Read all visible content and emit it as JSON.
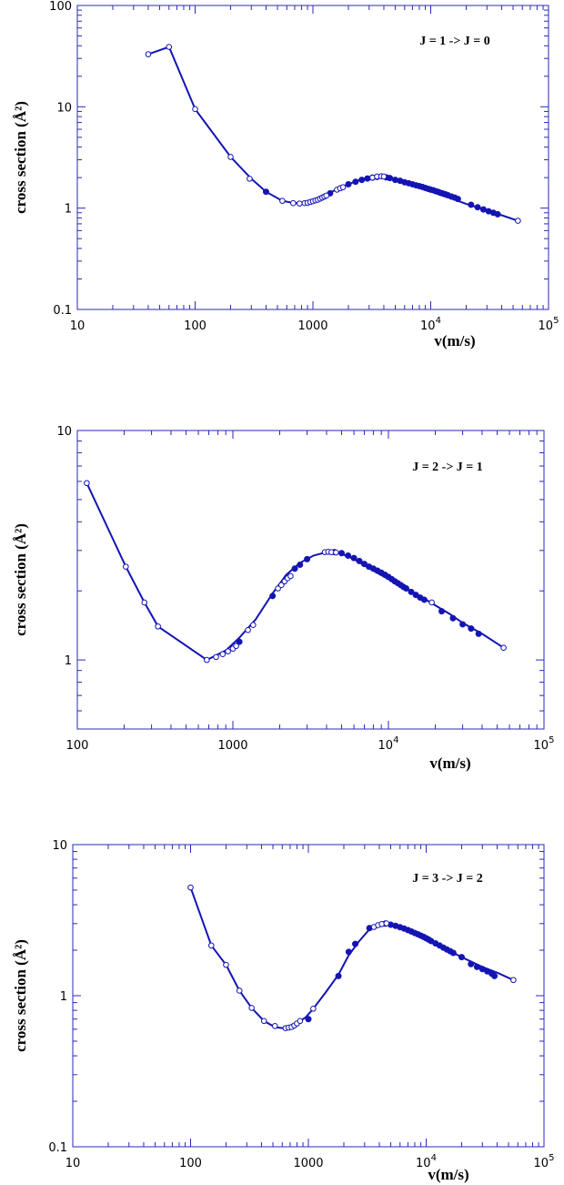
{
  "chart_data": [
    {
      "type": "line",
      "annotation": "J = 1 -> J = 0",
      "xlabel_base": "v(m/s)",
      "ylabel": "cross  section  (Å²)",
      "xscale": "log",
      "yscale": "log",
      "xlim": [
        10,
        100000
      ],
      "ylim": [
        0.1,
        100
      ],
      "x_ticks": [
        {
          "value": 10,
          "base": "10",
          "exp": ""
        },
        {
          "value": 100,
          "base": "100",
          "exp": ""
        },
        {
          "value": 1000,
          "base": "1000",
          "exp": ""
        },
        {
          "value": 10000,
          "base": "10",
          "exp": "4"
        },
        {
          "value": 100000,
          "base": "10",
          "exp": "5"
        }
      ],
      "y_ticks": [
        {
          "value": 0.1,
          "label": "0.1"
        },
        {
          "value": 1,
          "label": "1"
        },
        {
          "value": 10,
          "label": "10"
        },
        {
          "value": 100,
          "label": "100"
        }
      ],
      "line": {
        "x": [
          40,
          60,
          100,
          200,
          300,
          400,
          550,
          700,
          900,
          1200,
          1500,
          2000,
          2500,
          3000,
          3500,
          4000,
          5000,
          7000,
          10000,
          15000,
          20000,
          30000,
          40000,
          55000
        ],
        "y": [
          33,
          39,
          9.5,
          3.2,
          1.95,
          1.45,
          1.18,
          1.12,
          1.14,
          1.27,
          1.48,
          1.72,
          1.9,
          2.0,
          2.05,
          2.02,
          1.88,
          1.68,
          1.48,
          1.25,
          1.1,
          0.95,
          0.85,
          0.75
        ]
      },
      "markers_open": {
        "x": [
          40,
          60,
          100,
          200,
          290,
          550,
          680,
          770,
          850,
          900,
          950,
          1000,
          1050,
          1100,
          1150,
          1200,
          1250,
          1300,
          1600,
          1700,
          1800,
          3200,
          3500,
          3800,
          4000,
          55000
        ],
        "y": [
          33,
          39,
          9.5,
          3.2,
          1.95,
          1.18,
          1.12,
          1.11,
          1.12,
          1.13,
          1.15,
          1.17,
          1.19,
          1.21,
          1.24,
          1.27,
          1.3,
          1.33,
          1.52,
          1.57,
          1.61,
          2.0,
          2.05,
          2.06,
          2.05,
          0.75
        ]
      },
      "markers_filled": {
        "x": [
          400,
          1400,
          2000,
          2300,
          2600,
          2900,
          3200,
          3500,
          4200,
          4500,
          5000,
          5500,
          6000,
          6500,
          7000,
          7500,
          8000,
          8500,
          9000,
          9500,
          10000,
          10500,
          11000,
          11500,
          12000,
          12500,
          13000,
          13500,
          14000,
          15000,
          16000,
          17000,
          22000,
          25000,
          28000,
          31000,
          34000,
          37000
        ],
        "y": [
          1.45,
          1.4,
          1.72,
          1.82,
          1.9,
          1.96,
          2.0,
          2.03,
          2.01,
          1.98,
          1.9,
          1.86,
          1.8,
          1.76,
          1.72,
          1.68,
          1.65,
          1.62,
          1.58,
          1.55,
          1.52,
          1.5,
          1.47,
          1.45,
          1.42,
          1.4,
          1.38,
          1.36,
          1.34,
          1.3,
          1.27,
          1.23,
          1.08,
          1.02,
          0.97,
          0.93,
          0.9,
          0.87
        ]
      }
    },
    {
      "type": "line",
      "annotation": "J = 2 -> J = 1",
      "xlabel_base": "v(m/s)",
      "ylabel": "cross  section  (Å²)",
      "xscale": "log",
      "yscale": "log",
      "xlim": [
        100,
        100000
      ],
      "ylim": [
        0.5,
        10
      ],
      "x_ticks": [
        {
          "value": 100,
          "base": "100",
          "exp": ""
        },
        {
          "value": 1000,
          "base": "1000",
          "exp": ""
        },
        {
          "value": 10000,
          "base": "10",
          "exp": "4"
        },
        {
          "value": 100000,
          "base": "10",
          "exp": "5"
        }
      ],
      "y_ticks": [
        {
          "value": 1,
          "label": "1"
        },
        {
          "value": 10,
          "label": "10"
        }
      ],
      "line": {
        "x": [
          115,
          205,
          270,
          330,
          680,
          900,
          1100,
          1400,
          1800,
          2200,
          2700,
          3300,
          4000,
          4500,
          5000,
          6000,
          8000,
          10000,
          13000,
          17000,
          20000,
          25000,
          30000,
          40000,
          55000
        ],
        "y": [
          5.9,
          2.55,
          1.78,
          1.4,
          1.0,
          1.1,
          1.25,
          1.5,
          1.95,
          2.35,
          2.65,
          2.85,
          2.95,
          2.94,
          2.9,
          2.75,
          2.45,
          2.25,
          2.05,
          1.85,
          1.73,
          1.58,
          1.45,
          1.3,
          1.13
        ]
      },
      "markers_open": {
        "x": [
          115,
          205,
          270,
          330,
          680,
          780,
          860,
          930,
          1000,
          1050,
          1250,
          1350,
          1950,
          2050,
          2150,
          2250,
          2350,
          3900,
          4100,
          4300,
          4600,
          19000,
          55000
        ],
        "y": [
          5.9,
          2.55,
          1.78,
          1.4,
          1.0,
          1.03,
          1.06,
          1.09,
          1.12,
          1.15,
          1.35,
          1.42,
          2.05,
          2.12,
          2.2,
          2.27,
          2.32,
          2.95,
          2.96,
          2.95,
          2.94,
          1.78,
          1.13
        ]
      },
      "markers_filled": {
        "x": [
          1100,
          1800,
          2500,
          2700,
          3000,
          4500,
          5000,
          5500,
          6000,
          6500,
          7000,
          7500,
          8000,
          8500,
          9000,
          9500,
          10000,
          10500,
          11000,
          11500,
          12000,
          12500,
          13000,
          14000,
          15000,
          16000,
          17000,
          22000,
          26000,
          30000,
          34000,
          38000
        ],
        "y": [
          1.2,
          1.9,
          2.5,
          2.6,
          2.75,
          2.95,
          2.92,
          2.85,
          2.78,
          2.7,
          2.62,
          2.55,
          2.5,
          2.45,
          2.4,
          2.35,
          2.3,
          2.25,
          2.2,
          2.16,
          2.12,
          2.08,
          2.05,
          1.98,
          1.92,
          1.87,
          1.83,
          1.63,
          1.52,
          1.43,
          1.37,
          1.3
        ]
      }
    },
    {
      "type": "line",
      "annotation": "J = 3 -> J = 2",
      "xlabel_base": "v(m/s)",
      "ylabel": "cross  section  (Å²)",
      "xscale": "log",
      "yscale": "log",
      "xlim": [
        10,
        100000
      ],
      "ylim": [
        0.1,
        10
      ],
      "x_ticks": [
        {
          "value": 10,
          "base": "10",
          "exp": ""
        },
        {
          "value": 100,
          "base": "100",
          "exp": ""
        },
        {
          "value": 1000,
          "base": "1000",
          "exp": ""
        },
        {
          "value": 10000,
          "base": "10",
          "exp": "4"
        },
        {
          "value": 100000,
          "base": "10",
          "exp": "5"
        }
      ],
      "y_ticks": [
        {
          "value": 0.1,
          "label": "0.1"
        },
        {
          "value": 1,
          "label": "1"
        },
        {
          "value": 10,
          "label": "10"
        }
      ],
      "line": {
        "x": [
          100,
          150,
          200,
          260,
          330,
          420,
          520,
          600,
          700,
          800,
          950,
          1100,
          1400,
          1800,
          2200,
          2700,
          3300,
          4000,
          4700,
          5500,
          7000,
          10000,
          15000,
          20000,
          30000,
          40000,
          55000
        ],
        "y": [
          5.2,
          2.15,
          1.6,
          1.08,
          0.83,
          0.68,
          0.62,
          0.61,
          0.62,
          0.66,
          0.72,
          0.82,
          1.05,
          1.38,
          1.85,
          2.3,
          2.75,
          3.0,
          3.02,
          2.95,
          2.7,
          2.35,
          2.02,
          1.8,
          1.55,
          1.42,
          1.27
        ]
      },
      "markers_open": {
        "x": [
          100,
          150,
          200,
          260,
          330,
          420,
          520,
          640,
          680,
          720,
          760,
          800,
          850,
          1100,
          3600,
          3900,
          4200,
          4600,
          55000
        ],
        "y": [
          5.2,
          2.15,
          1.6,
          1.08,
          0.83,
          0.68,
          0.63,
          0.61,
          0.615,
          0.62,
          0.635,
          0.655,
          0.68,
          0.82,
          2.85,
          2.93,
          2.98,
          3.01,
          1.27
        ]
      },
      "markers_filled": {
        "x": [
          1000,
          1800,
          2200,
          2500,
          3300,
          4500,
          5000,
          5500,
          6000,
          6500,
          7000,
          7500,
          8000,
          8500,
          9000,
          9500,
          10000,
          10500,
          11000,
          12000,
          13000,
          14000,
          15000,
          16000,
          17000,
          20000,
          24000,
          27000,
          30000,
          33000,
          36000,
          38000
        ],
        "y": [
          0.7,
          1.35,
          1.95,
          2.2,
          2.8,
          3.0,
          2.95,
          2.9,
          2.84,
          2.78,
          2.72,
          2.66,
          2.6,
          2.55,
          2.5,
          2.45,
          2.4,
          2.35,
          2.3,
          2.22,
          2.15,
          2.08,
          2.02,
          1.97,
          1.92,
          1.8,
          1.62,
          1.55,
          1.5,
          1.45,
          1.4,
          1.35
        ]
      }
    }
  ]
}
